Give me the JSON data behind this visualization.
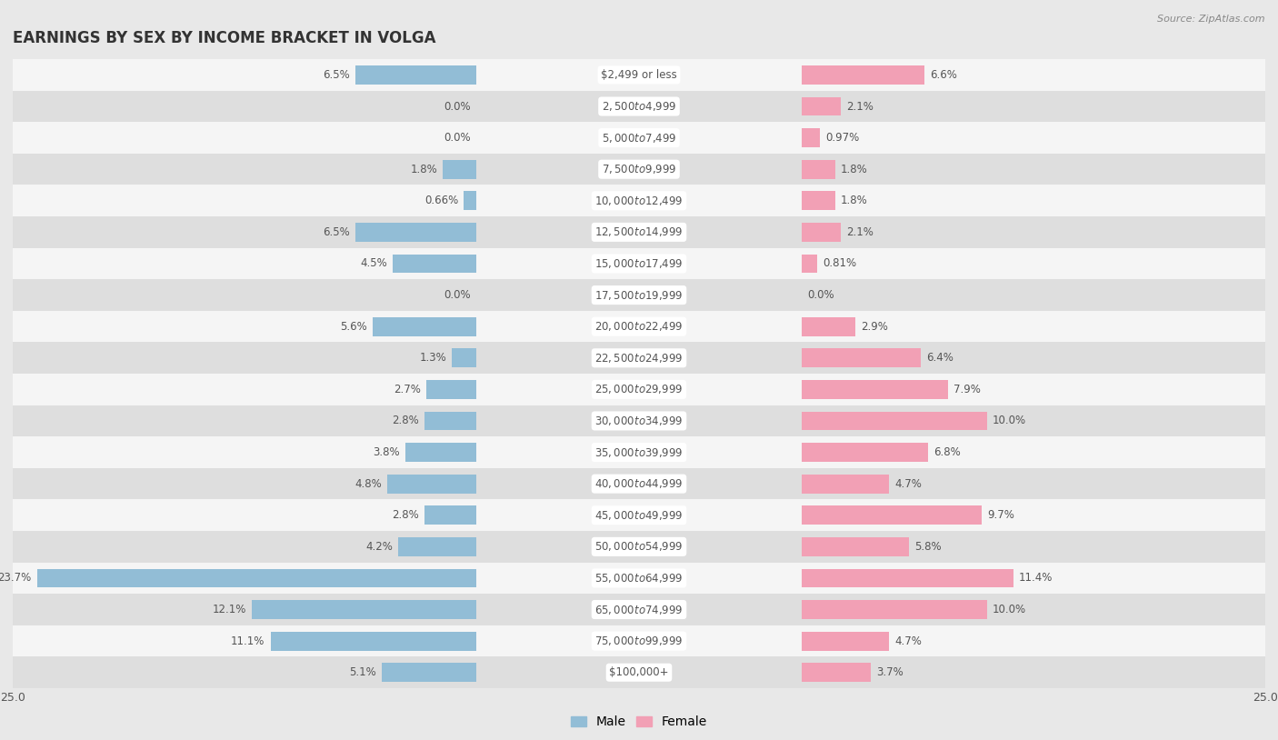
{
  "title": "EARNINGS BY SEX BY INCOME BRACKET IN VOLGA",
  "source": "Source: ZipAtlas.com",
  "categories": [
    "$2,499 or less",
    "$2,500 to $4,999",
    "$5,000 to $7,499",
    "$7,500 to $9,999",
    "$10,000 to $12,499",
    "$12,500 to $14,999",
    "$15,000 to $17,499",
    "$17,500 to $19,999",
    "$20,000 to $22,499",
    "$22,500 to $24,999",
    "$25,000 to $29,999",
    "$30,000 to $34,999",
    "$35,000 to $39,999",
    "$40,000 to $44,999",
    "$45,000 to $49,999",
    "$50,000 to $54,999",
    "$55,000 to $64,999",
    "$65,000 to $74,999",
    "$75,000 to $99,999",
    "$100,000+"
  ],
  "male_values": [
    6.5,
    0.0,
    0.0,
    1.8,
    0.66,
    6.5,
    4.5,
    0.0,
    5.6,
    1.3,
    2.7,
    2.8,
    3.8,
    4.8,
    2.8,
    4.2,
    23.7,
    12.1,
    11.1,
    5.1
  ],
  "female_values": [
    6.6,
    2.1,
    0.97,
    1.8,
    1.8,
    2.1,
    0.81,
    0.0,
    2.9,
    6.4,
    7.9,
    10.0,
    6.8,
    4.7,
    9.7,
    5.8,
    11.4,
    10.0,
    4.7,
    3.7
  ],
  "male_color": "#92bdd6",
  "female_color": "#f2a0b5",
  "bg_color": "#e8e8e8",
  "row_even_color": "#f5f5f5",
  "row_odd_color": "#e2e2e2",
  "bar_row_even": "#f5f5f5",
  "bar_row_odd": "#dedede",
  "xlim": 25.0,
  "label_fontsize": 8.5,
  "category_fontsize": 8.5,
  "title_fontsize": 12,
  "source_fontsize": 8,
  "legend_fontsize": 10,
  "bar_height": 0.6,
  "legend_male": "Male",
  "legend_female": "Female"
}
